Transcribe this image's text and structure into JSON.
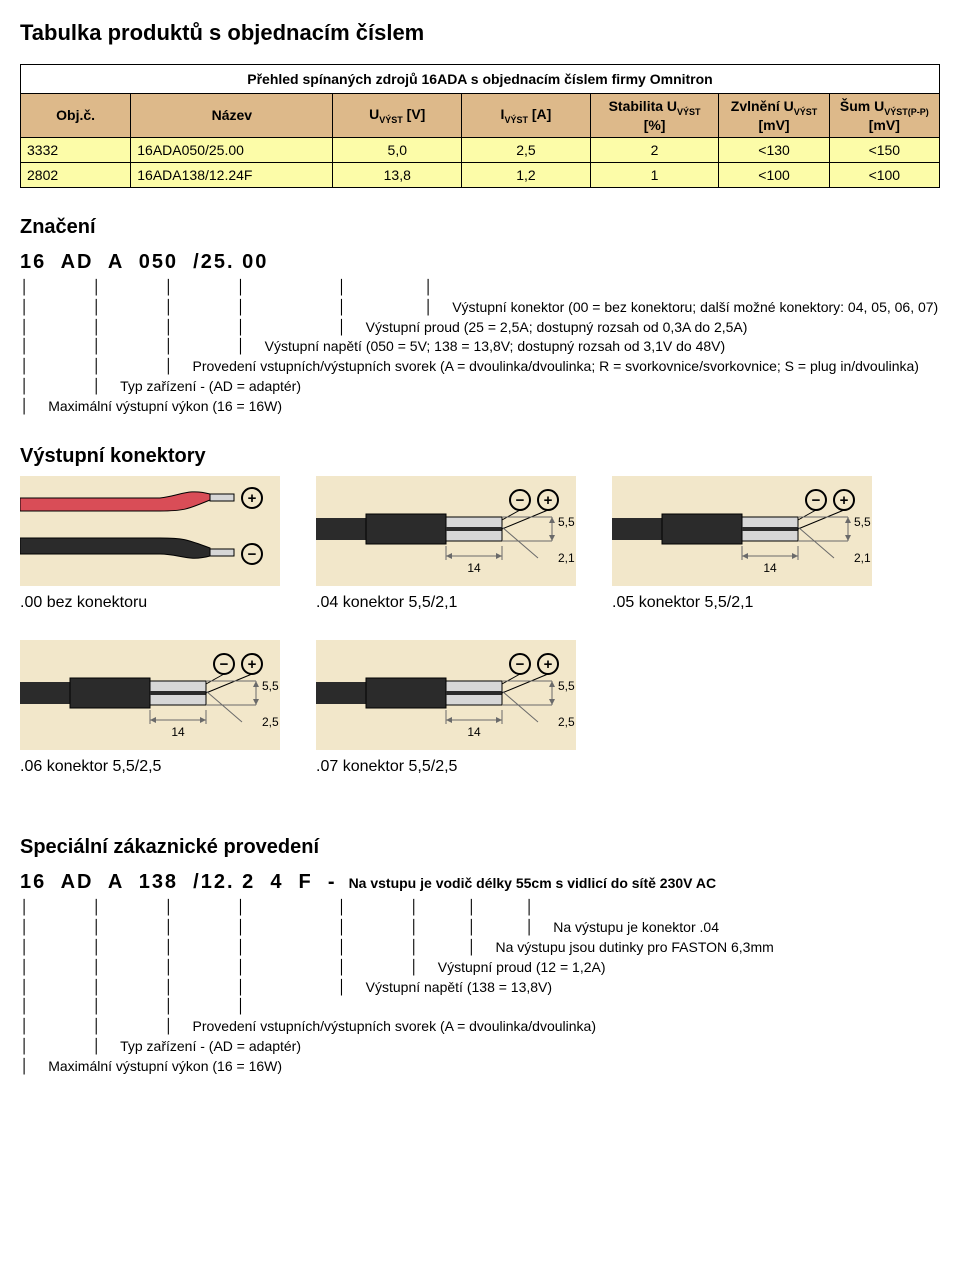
{
  "page_title": "Tabulka produktů s objednacím číslem",
  "table": {
    "caption": "Přehled spínaných zdrojů 16ADA s objednacím číslem firmy Omnitron",
    "header_bg": "#ddb98a",
    "columns": [
      {
        "label": "Obj.č.",
        "width": "12%"
      },
      {
        "label": "Název",
        "width": "22%"
      },
      {
        "label_html": "U<span class=\"subscript\">VÝST</span> [V]",
        "width": "14%"
      },
      {
        "label_html": "I<span class=\"subscript\">VÝST</span> [A]",
        "width": "14%"
      },
      {
        "label_html": "Stabilita U<span class=\"subscript\">VÝST</span> [%]",
        "width": "14%"
      },
      {
        "label_html": "Zvlnění U<span class=\"subscript\">VÝST</span> [mV]",
        "width": "12%"
      },
      {
        "label_html": "Šum U<span class=\"subscript\">VÝST(P-P)</span> [mV]",
        "width": "12%"
      }
    ],
    "rows": [
      {
        "bg": "#fcfca8",
        "cells": [
          "3332",
          "16ADA050/25.00",
          "5,0",
          "2,5",
          "2",
          "<130",
          "<150"
        ]
      },
      {
        "bg": "#fcfca8",
        "cells": [
          "2802",
          "16ADA138/12.24F",
          "13,8",
          "1,2",
          "1",
          "<100",
          "<100"
        ]
      }
    ]
  },
  "designation1": {
    "heading": "Značení",
    "code": "16  AD  A  050  /25. 00",
    "pipes_line": "│    │    │    │      │     │",
    "rows": [
      {
        "pipes": "│    │    │    │      │     │",
        "text": ""
      },
      {
        "pipes": "│    │    │    │      │     │",
        "text": "Výstupní konektor (00 = bez konektoru; další možné konektory: 04, 05, 06, 07)"
      },
      {
        "pipes": "│    │    │    │      │",
        "text": "Výstupní proud (25 = 2,5A; dostupný rozsah od 0,3A do 2,5A)"
      },
      {
        "pipes": "│    │    │    │",
        "text": "Výstupní napětí (050 = 5V; 138 = 13,8V; dostupný rozsah od 3,1V do 48V)"
      },
      {
        "pipes": "│    │    │",
        "text": "Provedení vstupních/výstupních svorek (A = dvoulinka/dvoulinka; R = svorkovnice/svorkovnice; S = plug in/dvoulinka)"
      },
      {
        "pipes": "│    │",
        "text": "Typ zařízení - (AD = adaptér)"
      },
      {
        "pipes": "│",
        "text": "Maximální výstupní výkon (16 = 16W)"
      }
    ]
  },
  "connectors": {
    "heading": "Výstupní konektory",
    "svg_style": {
      "bg": "#f2e7ca",
      "line": "#000000",
      "body_fill": "#2b2b2b",
      "tip_fill": "#d7d7d7",
      "dimline": "#6a6a6a",
      "text": "#000000",
      "red_wire": "#d94d57",
      "font_size": 12,
      "stroke_w": 2
    },
    "items": [
      {
        "type": "bare",
        "caption": ".00 bez konektoru"
      },
      {
        "type": "barrel",
        "caption": ".04 konektor 5,5/2,1",
        "length": "14",
        "outer": "5,5",
        "inner": "2,1"
      },
      {
        "type": "barrel",
        "caption": ".05 konektor 5,5/2,1",
        "length": "14",
        "outer": "5,5",
        "inner": "2,1"
      },
      {
        "type": "barrel",
        "caption": ".06 konektor 5,5/2,5",
        "length": "14",
        "outer": "5,5",
        "inner": "2,5"
      },
      {
        "type": "barrel",
        "caption": ".07 konektor 5,5/2,5",
        "length": "14",
        "outer": "5,5",
        "inner": "2,5"
      }
    ]
  },
  "special": {
    "heading": "Speciální zákaznické provedení",
    "code": "16  AD  A  138  /12. 2  4  F  -",
    "right_text": "Na vstupu je vodič délky 55cm s vidlicí do sítě 230V AC",
    "rows": [
      {
        "pipes": "│    │    │    │      │    │   │   │",
        "text": ""
      },
      {
        "pipes": "│    │    │    │      │    │   │   │",
        "text": "Na výstupu je konektor .04"
      },
      {
        "pipes": "│    │    │    │      │    │   │",
        "text": "Na výstupu jsou dutinky pro FASTON 6,3mm"
      },
      {
        "pipes": "│    │    │    │      │    │",
        "text": "Výstupní proud (12 = 1,2A)"
      },
      {
        "pipes": "│    │    │    │      │",
        "text": "Výstupní napětí (138 = 13,8V)"
      },
      {
        "pipes": "│    │    │    │",
        "text": ""
      },
      {
        "pipes": "│    │    │",
        "text": "Provedení vstupních/výstupních svorek (A = dvoulinka/dvoulinka)"
      },
      {
        "pipes": "│    │",
        "text": "Typ zařízení - (AD = adaptér)"
      },
      {
        "pipes": "│",
        "text": "Maximální výstupní výkon (16 = 16W)"
      }
    ]
  }
}
